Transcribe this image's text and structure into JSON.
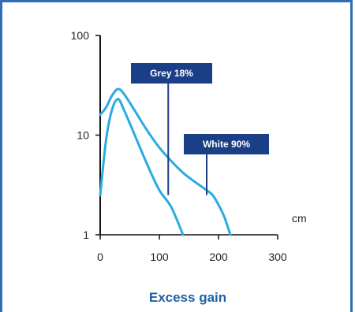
{
  "chart_data": {
    "type": "line",
    "title": "Excess gain",
    "xlabel": "cm",
    "ylabel": "",
    "x_scale": "linear",
    "y_scale": "log",
    "xlim": [
      0,
      300
    ],
    "ylim": [
      1,
      100
    ],
    "x_ticks": [
      0,
      100,
      200,
      300
    ],
    "y_ticks": [
      1,
      10,
      100
    ],
    "x_tick_labels": [
      "0",
      "100",
      "200",
      "300"
    ],
    "y_tick_labels": [
      "1",
      "10",
      "100"
    ],
    "series": [
      {
        "color": "#29abe2",
        "x": [
          0,
          10,
          20,
          30,
          40,
          60,
          80,
          100,
          120,
          140
        ],
        "y": [
          2.5,
          9,
          18,
          23,
          18,
          9.5,
          5,
          2.8,
          1.9,
          1.0
        ]
      },
      {
        "color": "#29abe2",
        "x": [
          0,
          10,
          20,
          30,
          40,
          60,
          80,
          100,
          120,
          140,
          160,
          180,
          190,
          200,
          210,
          220
        ],
        "y": [
          16,
          19,
          25,
          29,
          26,
          17,
          11,
          7.5,
          5.5,
          4.2,
          3.4,
          2.8,
          2.5,
          2.0,
          1.5,
          1.0
        ]
      }
    ],
    "annotations": [
      {
        "text": "Grey 18%",
        "point_x": 115,
        "point_y": 2.5,
        "box_color": "#1b3f87"
      },
      {
        "text": "White 90%",
        "point_x": 180,
        "point_y": 2.5,
        "box_color": "#1b3f87"
      }
    ],
    "grid": false
  }
}
